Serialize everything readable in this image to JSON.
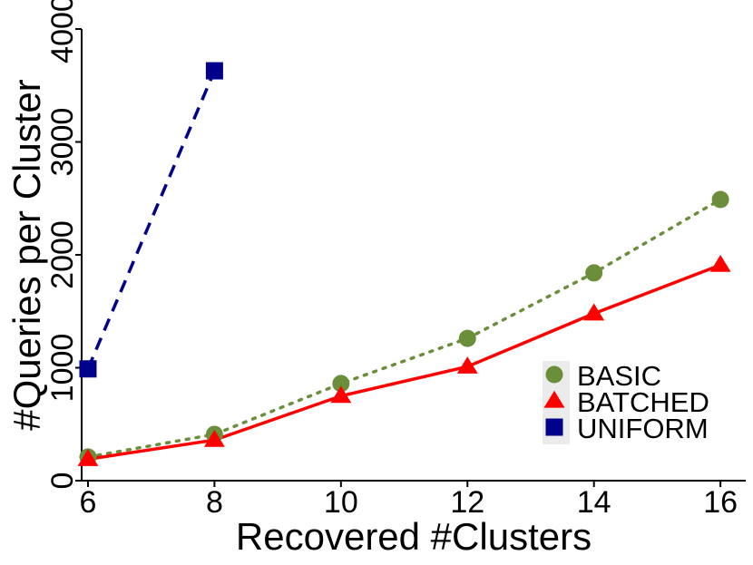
{
  "chart_data": {
    "type": "line",
    "title": "",
    "xlabel": "Recovered #Clusters",
    "ylabel": "#Queries per Cluster",
    "xlim": [
      5.9,
      16.4
    ],
    "ylim": [
      0,
      4000
    ],
    "x_ticks": [
      6,
      8,
      10,
      12,
      14,
      16
    ],
    "x_tick_labels": [
      "6",
      "8",
      "10",
      "12",
      "14",
      "16"
    ],
    "y_ticks": [
      0,
      1000,
      2000,
      3000,
      4000
    ],
    "y_tick_labels": [
      "0",
      "1000",
      "2000",
      "3000",
      "4000"
    ],
    "grid": false,
    "legend_position": "bottom-right",
    "series": [
      {
        "name": "BASIC",
        "color": "#6B8E3A",
        "marker": "circle",
        "line_style": "dotted",
        "x": [
          6,
          8,
          10,
          12,
          14,
          16
        ],
        "y": [
          210,
          410,
          860,
          1260,
          1840,
          2490
        ]
      },
      {
        "name": "BATCHED",
        "color": "#FF0000",
        "marker": "triangle",
        "line_style": "solid",
        "x": [
          6,
          8,
          10,
          12,
          14,
          16
        ],
        "y": [
          190,
          360,
          750,
          1010,
          1480,
          1910
        ]
      },
      {
        "name": "UNIFORM",
        "color": "#00008B",
        "marker": "square",
        "line_style": "dashed",
        "x": [
          6,
          8
        ],
        "y": [
          990,
          3630
        ]
      }
    ]
  }
}
